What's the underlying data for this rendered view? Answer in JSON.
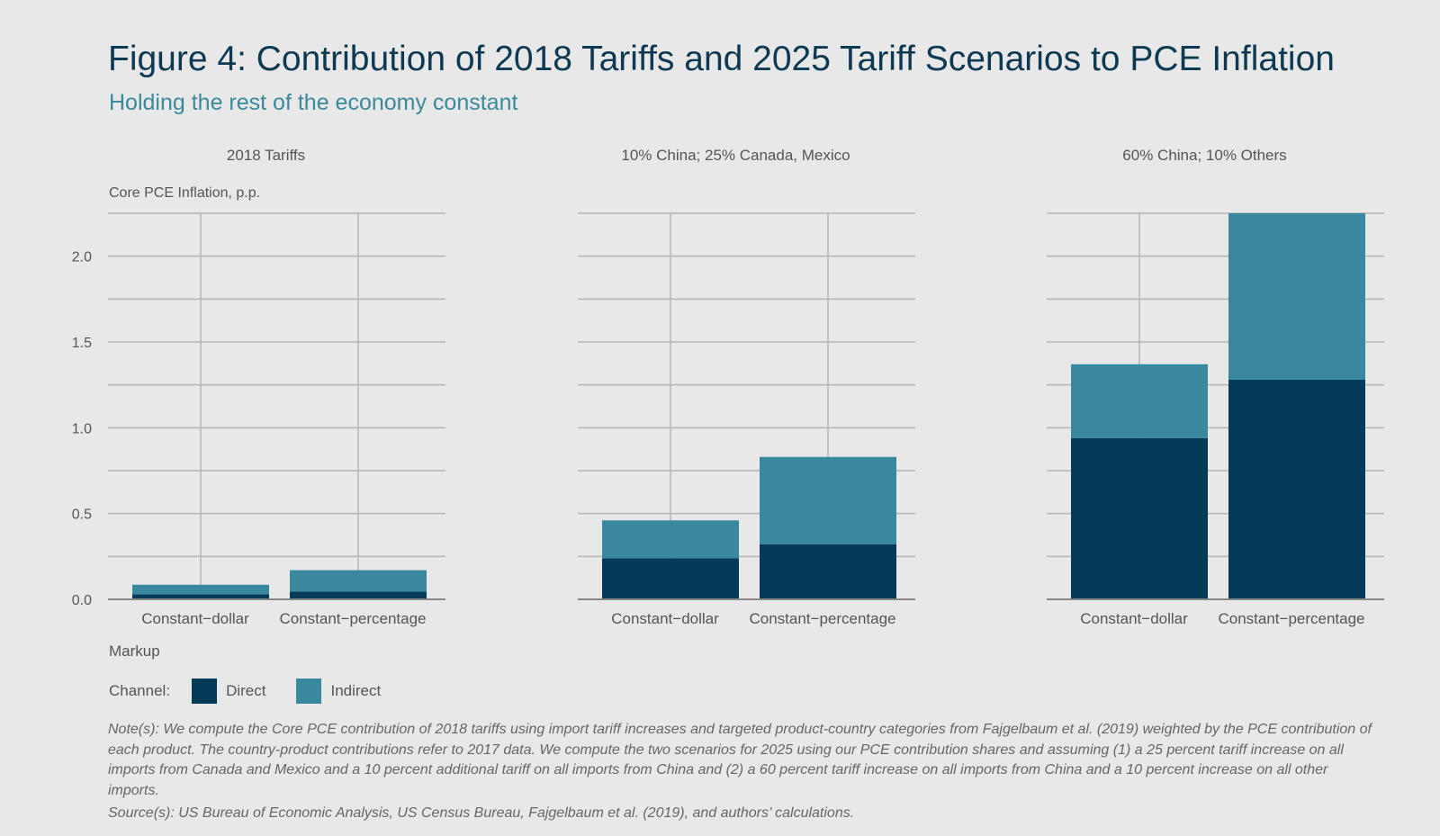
{
  "title": "Figure 4: Contribution of 2018 Tariffs and 2025 Tariff Scenarios to PCE Inflation",
  "subtitle": "Holding the rest of the economy constant",
  "chart_data": {
    "type": "bar",
    "stacked": true,
    "ylabel": "Core PCE Inflation, p.p.",
    "xlabel": "Markup",
    "ylim": [
      0,
      2.25
    ],
    "yticks": [
      0.0,
      0.5,
      1.0,
      1.5,
      2.0
    ],
    "ytick_labels": [
      "0.0",
      "0.5",
      "1.0",
      "1.5",
      "2.0"
    ],
    "grid": true,
    "legend": {
      "title": "Channel:",
      "placement": "bottom-left",
      "entries": [
        "Direct",
        "Indirect"
      ]
    },
    "colors": {
      "Direct": "#033a57",
      "Indirect": "#3a889e"
    },
    "categories": [
      "Constant−dollar",
      "Constant−percentage"
    ],
    "panels": [
      {
        "title": "2018 Tariffs",
        "series": [
          {
            "name": "Direct",
            "values": [
              0.03,
              0.045
            ]
          },
          {
            "name": "Indirect",
            "values": [
              0.055,
              0.125
            ]
          }
        ]
      },
      {
        "title": "10% China; 25% Canada, Mexico",
        "series": [
          {
            "name": "Direct",
            "values": [
              0.24,
              0.32
            ]
          },
          {
            "name": "Indirect",
            "values": [
              0.22,
              0.51
            ]
          }
        ]
      },
      {
        "title": "60% China; 10% Others",
        "series": [
          {
            "name": "Direct",
            "values": [
              0.94,
              1.28
            ]
          },
          {
            "name": "Indirect",
            "values": [
              0.43,
              0.97
            ]
          }
        ]
      }
    ]
  },
  "note": "Note(s): We compute the Core PCE contribution of 2018 tariffs using import tariff increases and targeted product-country categories from Fajgelbaum et al. (2019) weighted by the PCE contribution of each product. The country-product contributions refer to 2017 data. We compute the two scenarios for 2025 using our PCE contribution shares and assuming (1) a 25 percent tariff increase on all imports from Canada and Mexico and a 10 percent additional tariff on all imports from China and (2) a 60 percent tariff increase on all imports from China and a 10 percent increase on all other imports.",
  "source": "Source(s): US Bureau of Economic Analysis, US Census Bureau, Fajgelbaum et al. (2019), and authors’ calculations."
}
